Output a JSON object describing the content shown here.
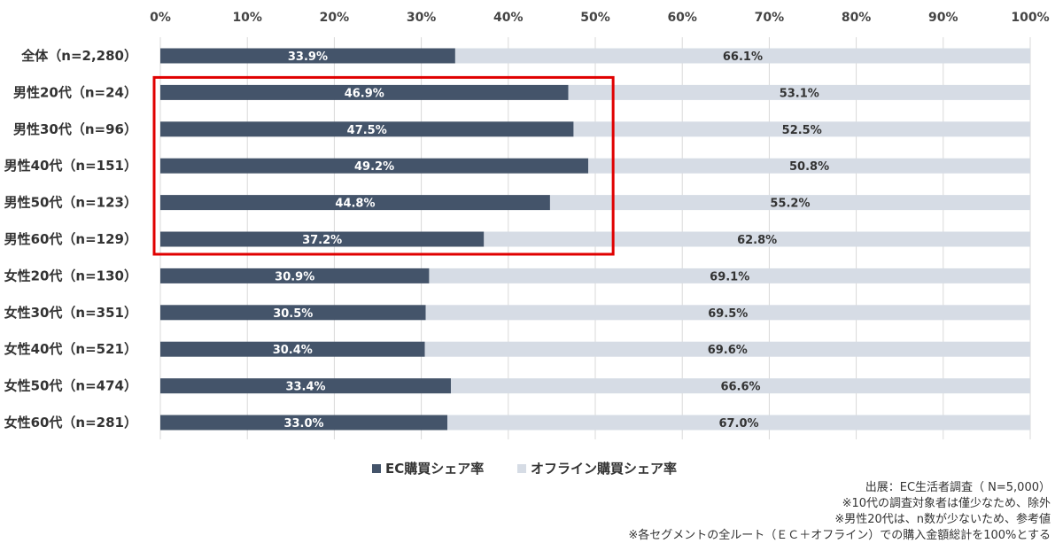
{
  "chart_data": {
    "type": "bar",
    "orientation": "horizontal",
    "stacked": true,
    "categories": [
      "全体（n=2,280）",
      "男性20代（n=24）",
      "男性30代（n=96）",
      "男性40代（n=151）",
      "男性50代（n=123）",
      "男性60代（n=129）",
      "女性20代（n=130）",
      "女性30代（n=351）",
      "女性40代（n=521）",
      "女性50代（n=474）",
      "女性60代（n=281）"
    ],
    "series": [
      {
        "name": "EC購買シェア率",
        "color": "#44546a",
        "label_color": "#ffffff",
        "values": [
          33.9,
          46.9,
          47.5,
          49.2,
          44.8,
          37.2,
          30.9,
          30.5,
          30.4,
          33.4,
          33.0
        ],
        "labels": [
          "33.9%",
          "46.9%",
          "47.5%",
          "49.2%",
          "44.8%",
          "37.2%",
          "30.9%",
          "30.5%",
          "30.4%",
          "33.4%",
          "33.0%"
        ]
      },
      {
        "name": "オフライン購買シェア率",
        "color": "#d6dce5",
        "label_color": "#333333",
        "values": [
          66.1,
          53.1,
          52.5,
          50.8,
          55.2,
          62.8,
          69.1,
          69.5,
          69.6,
          66.6,
          67.0
        ],
        "labels": [
          "66.1%",
          "53.1%",
          "52.5%",
          "50.8%",
          "55.2%",
          "62.8%",
          "69.1%",
          "69.5%",
          "69.6%",
          "66.6%",
          "67.0%"
        ]
      }
    ],
    "xlim": [
      0,
      100
    ],
    "x_ticks": [
      "0%",
      "10%",
      "20%",
      "30%",
      "40%",
      "50%",
      "60%",
      "70%",
      "80%",
      "90%",
      "100%"
    ],
    "axis_position": "top",
    "legend_position": "bottom",
    "highlight": {
      "categories": [
        "男性20代（n=24）",
        "男性30代（n=96）",
        "男性40代（n=151）",
        "男性50代（n=123）",
        "男性60代（n=129）"
      ],
      "color": "#e00000"
    }
  },
  "notes": [
    "出展：EC生活者調査（ N=5,000）",
    "※10代の調査対象者は僅少なため、除外",
    "※男性20代は、n数が少ないため、参考値",
    "※各セグメントの全ルート（ＥＣ＋オフライン）での購入金額総計を100%とする"
  ]
}
